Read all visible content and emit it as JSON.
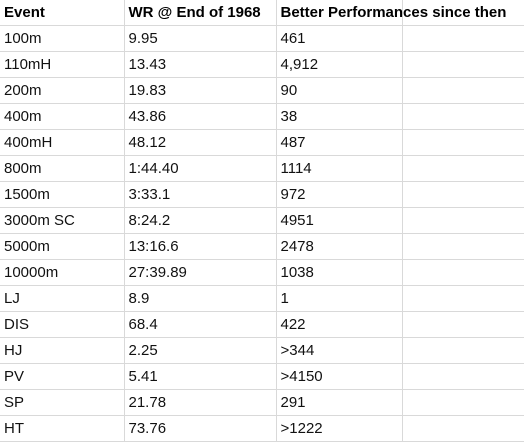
{
  "table": {
    "columns": [
      "Event",
      "WR @ End of 1968",
      "Better Performances since then",
      ""
    ],
    "rows": [
      {
        "event": "100m",
        "wr": "9.95",
        "better": "461"
      },
      {
        "event": "110mH",
        "wr": "13.43",
        "better": "4,912"
      },
      {
        "event": "200m",
        "wr": "19.83",
        "better": "90"
      },
      {
        "event": "400m",
        "wr": "43.86",
        "better": "38"
      },
      {
        "event": "400mH",
        "wr": "48.12",
        "better": "487"
      },
      {
        "event": "800m",
        "wr": "1:44.40",
        "better": "1114"
      },
      {
        "event": "1500m",
        "wr": "3:33.1",
        "better": "972"
      },
      {
        "event": "3000m SC",
        "wr": "8:24.2",
        "better": "4951"
      },
      {
        "event": "5000m",
        "wr": "13:16.6",
        "better": "2478"
      },
      {
        "event": "10000m",
        "wr": "27:39.89",
        "better": "1038"
      },
      {
        "event": "LJ",
        "wr": "8.9",
        "better": "1"
      },
      {
        "event": "DIS",
        "wr": "68.4",
        "better": "422"
      },
      {
        "event": "HJ",
        "wr": "2.25",
        "better": ">344"
      },
      {
        "event": "PV",
        "wr": "5.41",
        "better": ">4150"
      },
      {
        "event": "SP",
        "wr": "21.78",
        "better": "291"
      },
      {
        "event": "HT",
        "wr": "73.76",
        "better": ">1222"
      }
    ]
  }
}
